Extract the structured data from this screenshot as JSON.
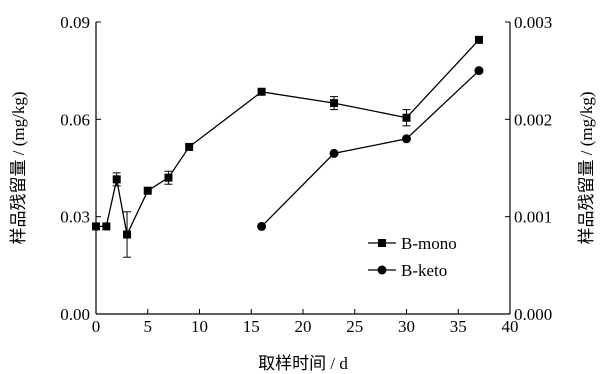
{
  "chart_data": {
    "type": "line",
    "xlabel": "取样时间 / d",
    "ylabel_left": "样品残留量 / (mg/kg)",
    "ylabel_right": "样品残留量 / (mg/kg)",
    "xlim": [
      0,
      40
    ],
    "ylim_left": [
      0,
      0.09
    ],
    "ylim_right": [
      0,
      0.003
    ],
    "x_ticks": [
      "0",
      "5",
      "10",
      "15",
      "20",
      "25",
      "30",
      "35",
      "40"
    ],
    "y_left_ticks": [
      "0.00",
      "0.03",
      "0.06",
      "0.09"
    ],
    "y_right_ticks": [
      "0.000",
      "0.001",
      "0.002",
      "0.003"
    ],
    "grid": false,
    "legend_position": "lower-right",
    "series": [
      {
        "name": "B-mono",
        "axis": "left",
        "marker": "square",
        "x": [
          0,
          1,
          2,
          3,
          5,
          7,
          9,
          16,
          23,
          30,
          37
        ],
        "y": [
          0.027,
          0.027,
          0.0415,
          0.0245,
          0.038,
          0.042,
          0.0515,
          0.0685,
          0.065,
          0.0605,
          0.0845
        ],
        "err": [
          0,
          0,
          0.002,
          0.007,
          0,
          0.002,
          0,
          0,
          0.002,
          0.0025,
          0
        ]
      },
      {
        "name": "B-keto",
        "axis": "right",
        "marker": "circle",
        "x": [
          16,
          23,
          30,
          37
        ],
        "y": [
          0.0009,
          0.00165,
          0.0018,
          0.0025
        ]
      }
    ]
  }
}
